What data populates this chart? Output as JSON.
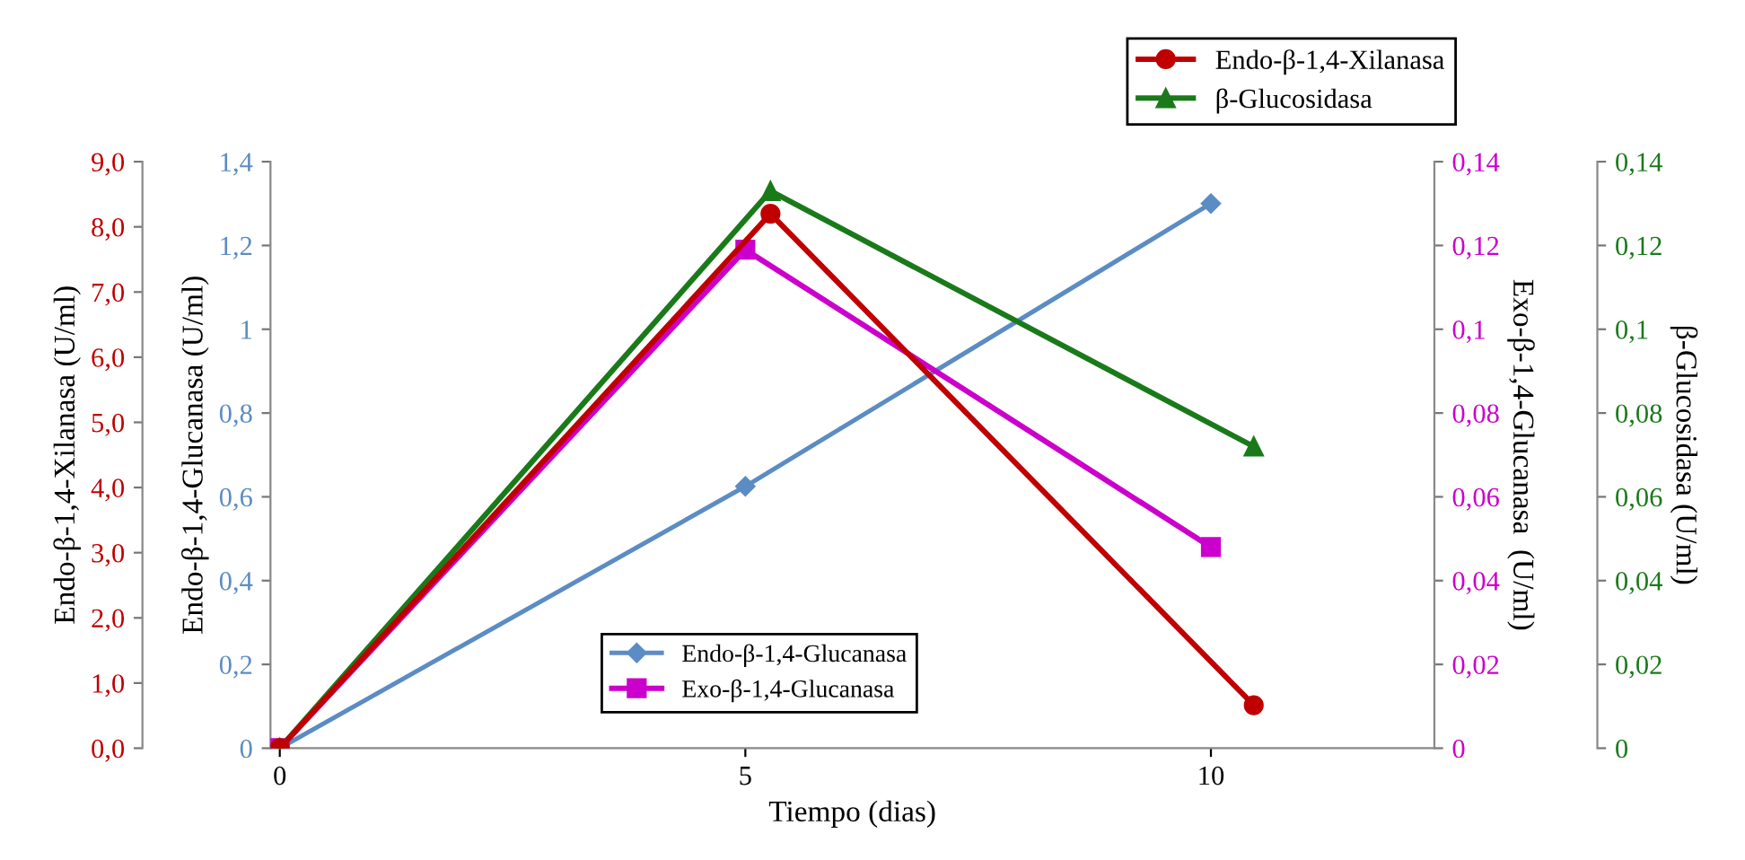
{
  "chart_data": [
    {
      "type": "line",
      "xlabel": "Tiempo (dias)",
      "ylabel": "Endo-β-1,4-Glucanasa (U/ml)",
      "y2label": "Exo-β-1,4-Glucanasa  (U/ml)",
      "xlim": [
        -0.1,
        12.4
      ],
      "xticks": [
        0,
        5,
        10
      ],
      "ylim": [
        0,
        1.4
      ],
      "yticks": [
        0,
        {
          "value": 0.2,
          "label": "0,2"
        },
        {
          "value": 0.4,
          "label": "0,4"
        },
        {
          "value": 0.6,
          "label": "0,6"
        },
        {
          "value": 0.8,
          "label": "0,8"
        },
        1,
        {
          "value": 1.2,
          "label": "1,2"
        },
        {
          "value": 1.4,
          "label": "1,4"
        }
      ],
      "y2lim": [
        0,
        0.14
      ],
      "y2ticks": [
        0,
        {
          "value": 0.02,
          "label": "0,02"
        },
        {
          "value": 0.04,
          "label": "0,04"
        },
        {
          "value": 0.06,
          "label": "0,06"
        },
        {
          "value": 0.08,
          "label": "0,08"
        },
        {
          "value": 0.1,
          "label": "0,1"
        },
        {
          "value": 0.12,
          "label": "0,12"
        },
        {
          "value": 0.14,
          "label": "0,14"
        }
      ],
      "legend": "bottom",
      "grid": false,
      "line_style": "solid",
      "series": [
        {
          "name": "Endo-β-1,4-Glucanasa",
          "color": "#5b8cc4",
          "marker": "diamond",
          "x": [
            0,
            5,
            10
          ],
          "values": [
            0,
            0.625,
            1.3
          ]
        },
        {
          "name": "Exo-β-1,4-Glucanasa",
          "color": "#cc00cc",
          "axis": "y2",
          "marker": "square",
          "x": [
            0,
            5,
            10
          ],
          "values": [
            0,
            0.119,
            0.048
          ]
        }
      ]
    },
    {
      "type": "line",
      "ylabel": "β-Glucosidasa (U/ml)",
      "y2label": "Endo-β-1,4-Xilanasa (U/ml)",
      "tick_labels": "y",
      "xlim": [
        -0.1,
        12.4
      ],
      "ylim": [
        0,
        0.14
      ],
      "yticks": [
        0,
        {
          "value": 0.02,
          "label": "0,02"
        },
        {
          "value": 0.04,
          "label": "0,04"
        },
        {
          "value": 0.06,
          "label": "0,06"
        },
        {
          "value": 0.08,
          "label": "0,08"
        },
        {
          "value": 0.1,
          "label": "0,1"
        },
        {
          "value": 0.12,
          "label": "0,12"
        },
        {
          "value": 0.14,
          "label": "0,14"
        }
      ],
      "y2lim": [
        0,
        9
      ],
      "y2ticks": [
        {
          "value": 0,
          "label": "0,0"
        },
        {
          "value": 1,
          "label": "1,0"
        },
        {
          "value": 2,
          "label": "2,0"
        },
        {
          "value": 3,
          "label": "3,0"
        },
        {
          "value": 4,
          "label": "4,0"
        },
        {
          "value": 5,
          "label": "5,0"
        },
        {
          "value": 6,
          "label": "6,0"
        },
        {
          "value": 7,
          "label": "7,0"
        },
        {
          "value": 8,
          "label": "8,0"
        },
        {
          "value": 9,
          "label": "9,0"
        }
      ],
      "legend": "top right",
      "grid": false,
      "line_style": "solid",
      "series": [
        {
          "name": "Endo-β-1,4-Xilanasa",
          "color": "#c00000",
          "axis": "y2",
          "marker": "circle",
          "x": [
            0,
            5.27,
            10.46
          ],
          "values": [
            0,
            8.2,
            0.66
          ]
        },
        {
          "name": "β-Glucosidasa",
          "color": "#1a7a1a",
          "marker": "triangle",
          "x": [
            0,
            5.27,
            10.46
          ],
          "values": [
            0,
            0.133,
            0.072
          ]
        }
      ]
    }
  ]
}
